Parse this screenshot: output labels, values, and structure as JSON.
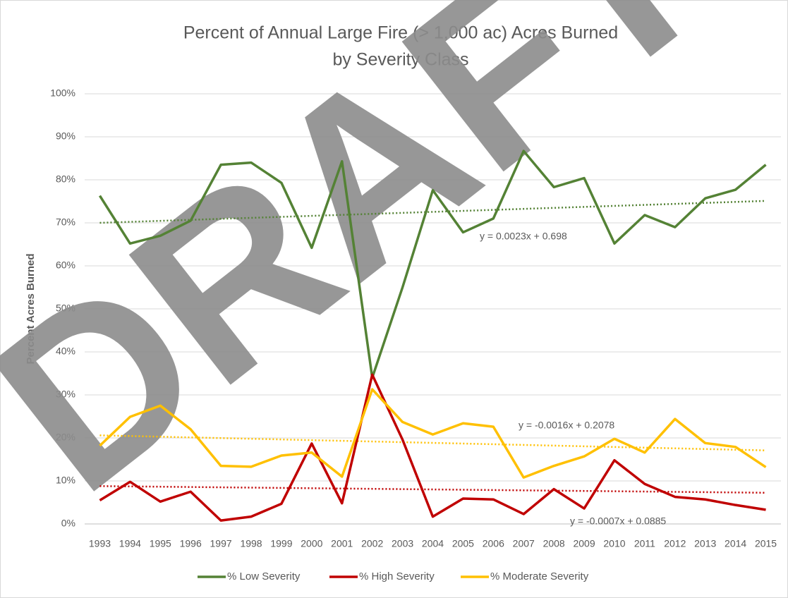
{
  "chart_data": {
    "type": "line",
    "title": [
      "Percent of Annual Large Fire (> 1,000 ac) Acres Burned",
      "by Severity Class"
    ],
    "y_label": "Percent Acres Burned",
    "watermark": "DRAFT",
    "categories": [
      "1993",
      "1994",
      "1995",
      "1996",
      "1997",
      "1998",
      "1999",
      "2000",
      "2001",
      "2002",
      "2003",
      "2004",
      "2005",
      "2006",
      "2007",
      "2008",
      "2009",
      "2010",
      "2011",
      "2012",
      "2013",
      "2014",
      "2015"
    ],
    "series": [
      {
        "name": "% Low Severity",
        "color": "#548235",
        "values": [
          76.3,
          65.2,
          67,
          70.5,
          83.5,
          84,
          79.3,
          64.2,
          84.3,
          34,
          55,
          77.6,
          67.8,
          71,
          86.7,
          78.3,
          80.4,
          65.2,
          71.8,
          69,
          75.7,
          77.7,
          83.5
        ]
      },
      {
        "name": "% High Severity",
        "color": "#c00000",
        "values": [
          5.5,
          9.8,
          5.2,
          7.5,
          0.8,
          1.7,
          4.7,
          18.7,
          4.8,
          34.7,
          19.6,
          1.7,
          5.9,
          5.7,
          2.3,
          8.1,
          3.6,
          14.8,
          9.3,
          6.3,
          5.7,
          4.4,
          3.3
        ]
      },
      {
        "name": "% Moderate Severity",
        "color": "#ffc000",
        "values": [
          18.2,
          24.9,
          27.5,
          22,
          13.5,
          13.3,
          15.9,
          16.6,
          11,
          31.3,
          23.7,
          20.8,
          23.4,
          22.6,
          10.8,
          13.5,
          15.7,
          19.8,
          16.6,
          24.4,
          18.8,
          17.9,
          13.2
        ]
      }
    ],
    "trendlines": [
      {
        "label": "y = 0.0023x + 0.698",
        "color": "#548235",
        "start": 70.0,
        "end": 75.1
      },
      {
        "label": "y = -0.0016x + 0.2078",
        "color": "#ffc000",
        "start": 20.6,
        "end": 17.1
      },
      {
        "label": "y = -0.0007x + 0.0885",
        "color": "#c00000",
        "start": 8.8,
        "end": 7.25
      }
    ],
    "ylim": [
      0,
      100
    ],
    "yticks": [
      {
        "value": 0,
        "label": "0%"
      },
      {
        "value": 10,
        "label": "10%"
      },
      {
        "value": 20,
        "label": "20%"
      },
      {
        "value": 30,
        "label": "30%"
      },
      {
        "value": 40,
        "label": "40%"
      },
      {
        "value": 50,
        "label": "50%"
      },
      {
        "value": 60,
        "label": "60%"
      },
      {
        "value": 70,
        "label": "70%"
      },
      {
        "value": 80,
        "label": "80%"
      },
      {
        "value": 90,
        "label": "90%"
      },
      {
        "value": 100,
        "label": "100%"
      }
    ],
    "grid": true,
    "legend": "bottom"
  }
}
